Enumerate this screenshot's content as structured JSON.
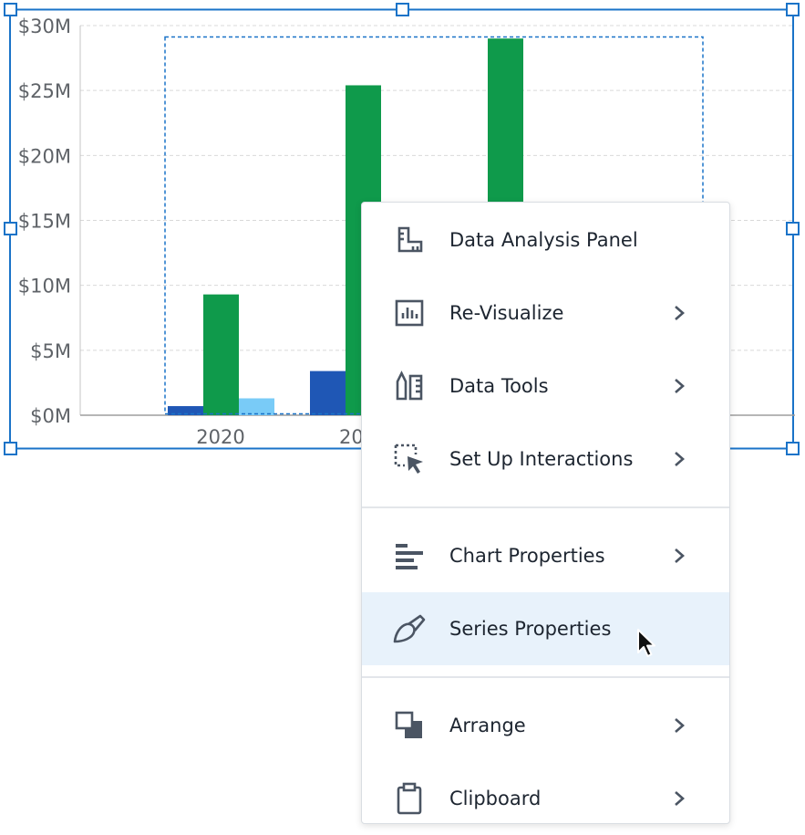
{
  "chart": {
    "y_ticks": [
      "$30M",
      "$25M",
      "$20M",
      "$15M",
      "$10M",
      "$5M",
      "$0M"
    ],
    "x_labels": [
      "2020",
      "20"
    ],
    "colors": {
      "dark_blue": "#1f57b5",
      "green": "#0f9a4b",
      "light_blue": "#79cbf7",
      "selection": "#1a73c8"
    }
  },
  "chart_data": {
    "type": "bar",
    "categories": [
      "2020",
      "20",
      ""
    ],
    "series": [
      {
        "values": [
          0.7,
          3.4,
          null
        ]
      },
      {
        "values": [
          9.3,
          25.4,
          29.0
        ]
      },
      {
        "values": [
          1.3,
          null,
          null
        ]
      }
    ],
    "ylim": [
      0,
      30
    ],
    "ytick_labels": [
      "$0M",
      "$5M",
      "$10M",
      "$15M",
      "$20M",
      "$25M",
      "$30M"
    ],
    "grid": true
  },
  "menu": {
    "items": [
      {
        "label": "Data Analysis Panel",
        "icon": "ruler-icon",
        "submenu": false
      },
      {
        "label": "Re-Visualize",
        "icon": "bar-chart-icon",
        "submenu": true
      },
      {
        "label": "Data Tools",
        "icon": "data-tools-icon",
        "submenu": true
      },
      {
        "label": "Set Up Interactions",
        "icon": "interaction-cursor-icon",
        "submenu": true
      },
      {
        "label": "Chart Properties",
        "icon": "chart-properties-icon",
        "submenu": true
      },
      {
        "label": "Series Properties",
        "icon": "brush-icon",
        "submenu": false,
        "highlighted": true
      },
      {
        "label": "Arrange",
        "icon": "arrange-icon",
        "submenu": true
      },
      {
        "label": "Clipboard",
        "icon": "clipboard-icon",
        "submenu": true
      }
    ],
    "highlight_color": "#e8f2fb"
  }
}
